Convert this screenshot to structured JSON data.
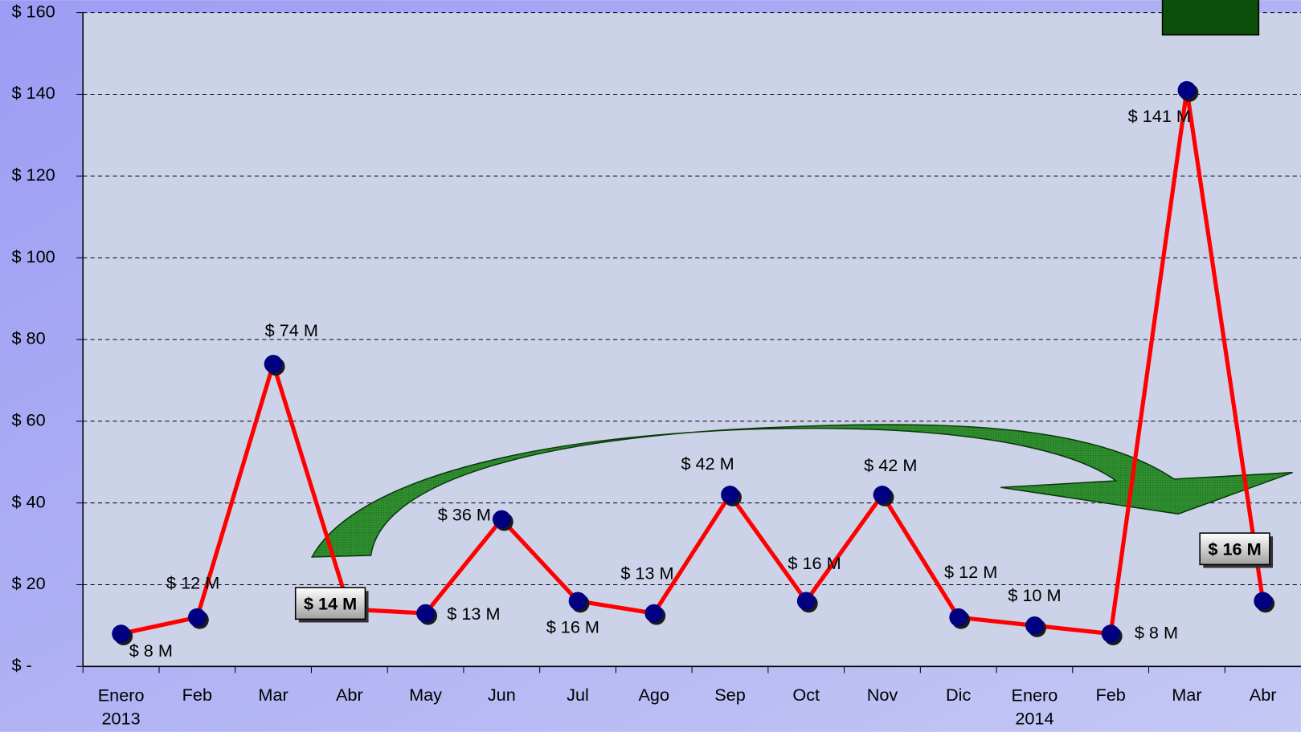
{
  "chart_data": {
    "type": "line",
    "categories": [
      "Enero 2013",
      "Feb",
      "Mar",
      "Abr",
      "May",
      "Jun",
      "Jul",
      "Ago",
      "Sep",
      "Oct",
      "Nov",
      "Dic",
      "Enero 2014",
      "Feb",
      "Mar",
      "Abr"
    ],
    "values": [
      8,
      12,
      74,
      14,
      13,
      36,
      16,
      13,
      42,
      16,
      42,
      12,
      10,
      8,
      141,
      16
    ],
    "value_labels": [
      "$ 8 M",
      "$ 12 M",
      "$ 74 M",
      "$ 14 M",
      "$ 13 M",
      "$ 36 M",
      "$ 16 M",
      "$ 13 M",
      "$ 42 M",
      "$ 16 M",
      "$ 42 M",
      "$ 12 M",
      "$ 10 M",
      "$ 8 M",
      "$ 141 M",
      "$ 16 M"
    ],
    "color": "#ff0000",
    "marker_color": "#000080",
    "ylim": [
      0,
      160
    ],
    "yticks": [
      {
        "value": 0,
        "label": "$ -"
      },
      {
        "value": 20,
        "label": "$ 20"
      },
      {
        "value": 40,
        "label": "$ 40"
      },
      {
        "value": 60,
        "label": "$ 60"
      },
      {
        "value": 80,
        "label": "$ 80"
      },
      {
        "value": 100,
        "label": "$ 100"
      },
      {
        "value": 120,
        "label": "$ 120"
      },
      {
        "value": 140,
        "label": "$ 140"
      },
      {
        "value": 160,
        "label": "$ 160"
      }
    ],
    "grid": true
  }
}
